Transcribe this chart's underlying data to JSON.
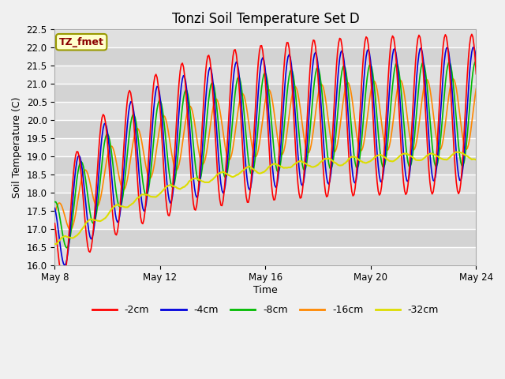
{
  "title": "Tonzi Soil Temperature Set D",
  "ylabel": "Soil Temperature (C)",
  "xlabel": "Time",
  "ylim": [
    16.0,
    22.5
  ],
  "xlim_days": [
    0,
    16
  ],
  "annotation": "TZ_fmet",
  "fig_bg_color": "#f0f0f0",
  "plot_bg_color": "#e0e0e0",
  "grid_color": "#ffffff",
  "series": [
    {
      "label": "-2cm",
      "color": "#ff0000",
      "lw": 1.2
    },
    {
      "label": "-4cm",
      "color": "#0000dd",
      "lw": 1.2
    },
    {
      "label": "-8cm",
      "color": "#00bb00",
      "lw": 1.2
    },
    {
      "label": "-16cm",
      "color": "#ff8800",
      "lw": 1.2
    },
    {
      "label": "-32cm",
      "color": "#dddd00",
      "lw": 1.5
    }
  ],
  "xtick_labels": [
    "May 8",
    "May 12",
    "May 16",
    "May 20",
    "May 24"
  ],
  "xtick_positions": [
    0,
    4,
    8,
    12,
    16
  ],
  "ytick_labels": [
    "16.0",
    "16.5",
    "17.0",
    "17.5",
    "18.0",
    "18.5",
    "19.0",
    "19.5",
    "20.0",
    "20.5",
    "21.0",
    "21.5",
    "22.0",
    "22.5"
  ],
  "title_fontsize": 12,
  "axis_label_fontsize": 9,
  "tick_fontsize": 8.5,
  "legend_fontsize": 9
}
